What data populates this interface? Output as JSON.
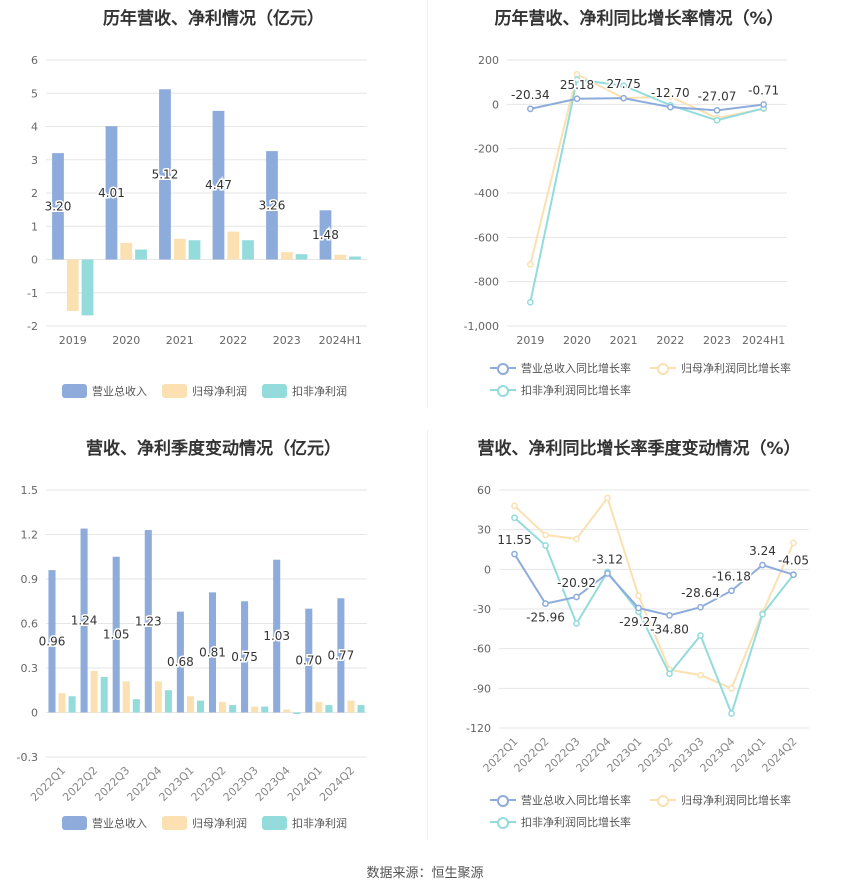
{
  "colors": {
    "revenue": "#8eacdb",
    "parent": "#fbe0b1",
    "deducted": "#94dcdc",
    "grid": "#e6e6e6",
    "axis": "#999999",
    "label": "#333333"
  },
  "titles": {
    "annual_bar": "历年营收、净利情况（亿元）",
    "annual_growth": "历年营收、净利同比增长率情况（%）",
    "quarter_bar": "营收、净利季度变动情况（亿元）",
    "quarter_growth": "营收、净利同比增长率季度变动情况（%）"
  },
  "legends": {
    "bar": [
      "营业总收入",
      "归母净利润",
      "扣非净利润"
    ],
    "growth": [
      "营业总收入同比增长率",
      "归母净利润同比增长率",
      "扣非净利润同比增长率"
    ]
  },
  "source": "数据来源：恒生聚源",
  "chart_data": [
    {
      "type": "bar",
      "title": "历年营收、净利情况（亿元）",
      "categories": [
        "2019",
        "2020",
        "2021",
        "2022",
        "2023",
        "2024H1"
      ],
      "ylim": [
        -2,
        6
      ],
      "yticks": [
        -2,
        -1,
        0,
        1,
        2,
        3,
        4,
        5,
        6
      ],
      "series": [
        {
          "name": "营业总收入",
          "values": [
            3.2,
            4.01,
            5.12,
            4.47,
            3.26,
            1.48
          ]
        },
        {
          "name": "归母净利润",
          "values": [
            -1.55,
            0.5,
            0.62,
            0.84,
            0.22,
            0.14
          ]
        },
        {
          "name": "扣非净利润",
          "values": [
            -1.68,
            0.3,
            0.58,
            0.58,
            0.16,
            0.09
          ]
        }
      ],
      "data_labels": [
        "3.20",
        "4.01",
        "5.12",
        "4.47",
        "3.26",
        "1.48"
      ],
      "grid": true,
      "legend": "bottom"
    },
    {
      "type": "line",
      "title": "历年营收、净利同比增长率情况（%）",
      "categories": [
        "2019",
        "2020",
        "2021",
        "2022",
        "2023",
        "2024H1"
      ],
      "ylim": [
        -1000,
        200
      ],
      "yticks": [
        -1000,
        -800,
        -600,
        -400,
        -200,
        0,
        200
      ],
      "ytick_labels": [
        "-1,000",
        "-800",
        "-600",
        "-400",
        "-200",
        "0",
        "200"
      ],
      "series": [
        {
          "name": "营业总收入同比增长率",
          "values": [
            -20.34,
            25.18,
            27.75,
            -12.7,
            -27.07,
            -0.71
          ]
        },
        {
          "name": "归母净利润同比增长率",
          "values": [
            -722,
            135,
            28,
            35,
            -62,
            -20
          ]
        },
        {
          "name": "扣非净利润同比增长率",
          "values": [
            -893,
            112,
            84,
            -4,
            -72,
            -18
          ]
        }
      ],
      "data_labels": [
        "-20.34",
        "25.18",
        "27.75",
        "-12.70",
        "-27.07",
        "-0.71"
      ],
      "grid": true,
      "legend": "bottom"
    },
    {
      "type": "bar",
      "title": "营收、净利季度变动情况（亿元）",
      "categories": [
        "2022Q1",
        "2022Q2",
        "2022Q3",
        "2022Q4",
        "2023Q1",
        "2023Q2",
        "2023Q3",
        "2023Q4",
        "2024Q1",
        "2024Q2"
      ],
      "ylim": [
        -0.3,
        1.5
      ],
      "yticks": [
        -0.3,
        0,
        0.3,
        0.6,
        0.9,
        1.2,
        1.5
      ],
      "series": [
        {
          "name": "营业总收入",
          "values": [
            0.96,
            1.24,
            1.05,
            1.23,
            0.68,
            0.81,
            0.75,
            1.03,
            0.7,
            0.77
          ]
        },
        {
          "name": "归母净利润",
          "values": [
            0.13,
            0.28,
            0.21,
            0.21,
            0.11,
            0.07,
            0.04,
            0.02,
            0.07,
            0.08
          ]
        },
        {
          "name": "扣非净利润",
          "values": [
            0.11,
            0.24,
            0.09,
            0.15,
            0.08,
            0.05,
            0.04,
            -0.01,
            0.05,
            0.05
          ]
        }
      ],
      "data_labels": [
        "0.96",
        "1.24",
        "1.05",
        "1.23",
        "0.68",
        "0.81",
        "0.75",
        "1.03",
        "0.70",
        "0.77"
      ],
      "grid": true,
      "legend": "bottom"
    },
    {
      "type": "line",
      "title": "营收、净利同比增长率季度变动情况（%）",
      "categories": [
        "2022Q1",
        "2022Q2",
        "2022Q3",
        "2022Q4",
        "2023Q1",
        "2023Q2",
        "2023Q3",
        "2023Q4",
        "2024Q1",
        "2024Q2"
      ],
      "ylim": [
        -120,
        60
      ],
      "yticks": [
        -120,
        -90,
        -60,
        -30,
        0,
        30,
        60
      ],
      "series": [
        {
          "name": "营业总收入同比增长率",
          "values": [
            11.55,
            -25.96,
            -20.92,
            -3.12,
            -29.27,
            -34.8,
            -28.64,
            -16.18,
            3.24,
            -4.05
          ]
        },
        {
          "name": "归母净利润同比增长率",
          "values": [
            48,
            26,
            23,
            54,
            -20,
            -76,
            -80,
            -90,
            -33,
            20
          ]
        },
        {
          "name": "扣非净利润同比增长率",
          "values": [
            39,
            18,
            -41,
            -2,
            -32,
            -79,
            -50,
            -109,
            -34,
            -4
          ]
        }
      ],
      "data_labels": [
        "11.55",
        "-25.96",
        "-20.92",
        "-3.12",
        "-29.27",
        "-34.80",
        "-28.64",
        "-16.18",
        "3.24",
        "-4.05"
      ],
      "grid": true,
      "legend": "bottom"
    }
  ]
}
